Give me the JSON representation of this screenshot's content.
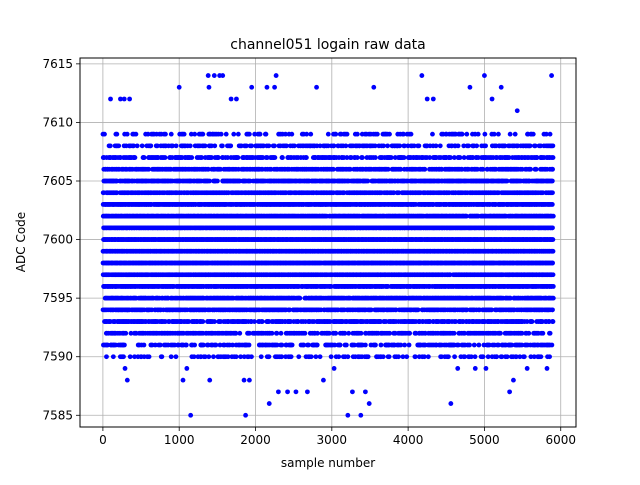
{
  "chart_data": {
    "type": "scatter",
    "title": "channel051 logain raw data",
    "xlabel": "sample number",
    "ylabel": "ADC Code",
    "xlim": [
      -300,
      6200
    ],
    "ylim": [
      7584,
      7615.5
    ],
    "xticks": [
      0,
      1000,
      2000,
      3000,
      4000,
      5000,
      6000
    ],
    "yticks": [
      7585,
      7590,
      7595,
      7600,
      7605,
      7610,
      7615
    ],
    "grid": true,
    "marker_color": "#0000ff",
    "x_range": [
      0,
      5900
    ],
    "dense_band": [
      7590,
      7609
    ],
    "extreme_points": [
      {
        "x": 1150,
        "y": 7585
      },
      {
        "x": 1870,
        "y": 7585
      },
      {
        "x": 3210,
        "y": 7585
      },
      {
        "x": 3380,
        "y": 7585
      },
      {
        "x": 3490,
        "y": 7586
      },
      {
        "x": 4560,
        "y": 7586
      },
      {
        "x": 2180,
        "y": 7586
      },
      {
        "x": 2300,
        "y": 7587
      },
      {
        "x": 2420,
        "y": 7587
      },
      {
        "x": 2530,
        "y": 7587
      },
      {
        "x": 2680,
        "y": 7587
      },
      {
        "x": 3270,
        "y": 7587
      },
      {
        "x": 3440,
        "y": 7587
      },
      {
        "x": 5330,
        "y": 7587
      },
      {
        "x": 320,
        "y": 7588
      },
      {
        "x": 1050,
        "y": 7588
      },
      {
        "x": 1400,
        "y": 7588
      },
      {
        "x": 1850,
        "y": 7588
      },
      {
        "x": 1920,
        "y": 7588
      },
      {
        "x": 2890,
        "y": 7588
      },
      {
        "x": 5380,
        "y": 7588
      },
      {
        "x": 290,
        "y": 7589
      },
      {
        "x": 1100,
        "y": 7589
      },
      {
        "x": 3030,
        "y": 7589
      },
      {
        "x": 4650,
        "y": 7589
      },
      {
        "x": 4880,
        "y": 7589
      },
      {
        "x": 5020,
        "y": 7589
      },
      {
        "x": 5560,
        "y": 7589
      },
      {
        "x": 5820,
        "y": 7589
      },
      {
        "x": 100,
        "y": 7612
      },
      {
        "x": 230,
        "y": 7612
      },
      {
        "x": 280,
        "y": 7612
      },
      {
        "x": 350,
        "y": 7612
      },
      {
        "x": 1390,
        "y": 7613
      },
      {
        "x": 1000,
        "y": 7613
      },
      {
        "x": 1380,
        "y": 7614
      },
      {
        "x": 1460,
        "y": 7614
      },
      {
        "x": 1530,
        "y": 7614
      },
      {
        "x": 1570,
        "y": 7614
      },
      {
        "x": 1680,
        "y": 7612
      },
      {
        "x": 1750,
        "y": 7612
      },
      {
        "x": 1950,
        "y": 7613
      },
      {
        "x": 2150,
        "y": 7613
      },
      {
        "x": 2250,
        "y": 7613
      },
      {
        "x": 2270,
        "y": 7614
      },
      {
        "x": 2800,
        "y": 7613
      },
      {
        "x": 3550,
        "y": 7613
      },
      {
        "x": 4180,
        "y": 7614
      },
      {
        "x": 4250,
        "y": 7612
      },
      {
        "x": 4330,
        "y": 7612
      },
      {
        "x": 4810,
        "y": 7613
      },
      {
        "x": 5000,
        "y": 7614
      },
      {
        "x": 5100,
        "y": 7612
      },
      {
        "x": 5220,
        "y": 7613
      },
      {
        "x": 5430,
        "y": 7611
      },
      {
        "x": 5880,
        "y": 7614
      }
    ]
  }
}
